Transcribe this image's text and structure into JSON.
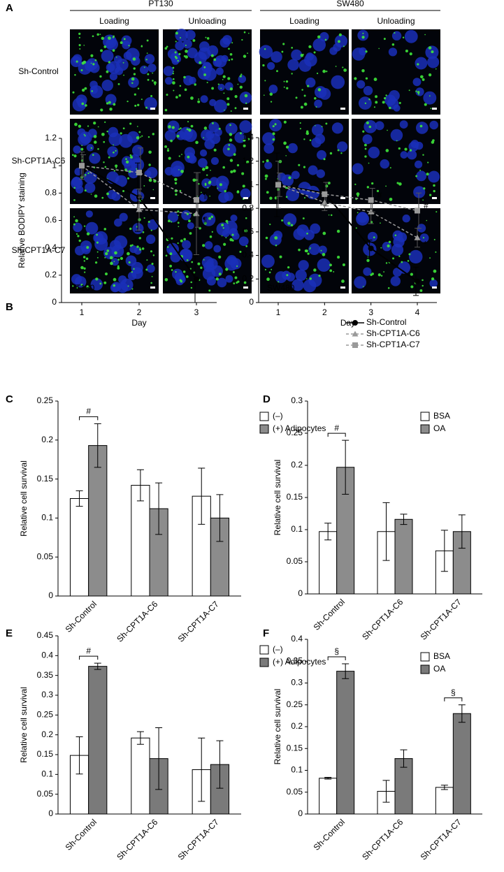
{
  "panel_a": {
    "label": "A",
    "groups": [
      {
        "title": "PT130",
        "columns": [
          "Loading",
          "Unloading"
        ]
      },
      {
        "title": "SW480",
        "columns": [
          "Loading",
          "Unloading"
        ]
      }
    ],
    "rows": [
      "Sh-Control",
      "Sh-CPT1A-C6",
      "Sh-CPT1A-C7"
    ]
  },
  "chart_data": [
    {
      "type": "line",
      "label": "B",
      "annotation": "PT130",
      "xlabel": "Day",
      "ylabel": "Relative BODIPY staining",
      "categories": [
        "1",
        "2",
        "3"
      ],
      "series": [
        {
          "color": "#000000",
          "marker": "circle",
          "linestyle": "solid",
          "values": [
            1,
            0.77,
            0.17
          ],
          "errors": [
            0.08,
            0.25,
            0.17
          ]
        },
        {
          "color": "#9a9a9a",
          "marker": "triangle",
          "linestyle": "dashed",
          "values": [
            1,
            0.68,
            0.65
          ],
          "errors": [
            0.1,
            0.15,
            0.3
          ]
        },
        {
          "color": "#9a9a9a",
          "marker": "square",
          "linestyle": "dashed",
          "values": [
            1,
            0.95,
            0.75
          ],
          "errors": [
            0.08,
            0.18,
            0.2
          ]
        }
      ],
      "ylim": [
        0,
        1.2
      ],
      "yticks": [
        0,
        0.2,
        0.4,
        0.6,
        0.8,
        1,
        1.2
      ],
      "point_notes": [
        {
          "text": "¶",
          "series": 2,
          "index": 2
        },
        {
          "text": "¶",
          "series": 1,
          "index": 2
        }
      ]
    },
    {
      "type": "line",
      "annotation": "SW480",
      "xlabel": "Day",
      "categories": [
        "1",
        "2",
        "3",
        "4"
      ],
      "series": [
        {
          "name": "Sh-Control",
          "color": "#000000",
          "marker": "circle",
          "linestyle": "solid",
          "values": [
            1,
            0.93,
            0.46,
            0.18
          ],
          "errors": [
            0.27,
            0.1,
            0.07,
            0.12
          ]
        },
        {
          "name": "Sh-CPT1A-C6",
          "color": "#9a9a9a",
          "marker": "triangle",
          "linestyle": "dashed",
          "values": [
            1,
            0.85,
            0.77,
            0.55
          ],
          "errors": [
            0.2,
            0.07,
            0.1,
            0.08
          ]
        },
        {
          "name": "Sh-CPT1A-C7",
          "color": "#9a9a9a",
          "marker": "square",
          "linestyle": "dashed",
          "values": [
            1,
            0.92,
            0.87,
            0.78
          ],
          "errors": [
            0.1,
            0.1,
            0.1,
            0.15
          ]
        }
      ],
      "ylim": [
        0,
        1.4
      ],
      "yticks": [
        0,
        0.2,
        0.4,
        0.6,
        0.8,
        1,
        1.2,
        1.4
      ],
      "point_notes": [
        {
          "text": "#",
          "series": 2,
          "index": 2
        },
        {
          "text": "#",
          "series": 1,
          "index": 2
        },
        {
          "text": "#",
          "series": 2,
          "index": 3
        },
        {
          "text": "*",
          "series": 1,
          "index": 3
        }
      ],
      "legend": "upper right"
    },
    {
      "type": "bar",
      "label": "C",
      "ylabel": "Relative cell survival",
      "categories": [
        "Sh-Control",
        "Sh-CPT1A-C6",
        "Sh-CPT1A-C7"
      ],
      "series": [
        {
          "name": "(–)",
          "color": "#ffffff",
          "values": [
            0.125,
            0.142,
            0.128
          ],
          "errors": [
            0.01,
            0.02,
            0.036
          ]
        },
        {
          "name": "(+) Adipocytes",
          "color": "#8c8c8c",
          "values": [
            0.193,
            0.112,
            0.1
          ],
          "errors": [
            0.028,
            0.033,
            0.03
          ]
        }
      ],
      "ylim": [
        0,
        0.25
      ],
      "yticks": [
        0,
        0.05,
        0.1,
        0.15,
        0.2,
        0.25
      ],
      "brackets": [
        {
          "text": "#",
          "category": 0
        }
      ],
      "legend": "upper right"
    },
    {
      "type": "bar",
      "label": "D",
      "ylabel": "Relative cell survival",
      "categories": [
        "Sh-Control",
        "Sh-CPT1A-C6",
        "Sh-CPT1A-C7"
      ],
      "series": [
        {
          "name": "BSA",
          "color": "#ffffff",
          "values": [
            0.097,
            0.097,
            0.067
          ],
          "errors": [
            0.013,
            0.045,
            0.032
          ]
        },
        {
          "name": "OA",
          "color": "#8c8c8c",
          "values": [
            0.197,
            0.116,
            0.097
          ],
          "errors": [
            0.042,
            0.008,
            0.026
          ]
        }
      ],
      "ylim": [
        0,
        0.3
      ],
      "yticks": [
        0,
        0.05,
        0.1,
        0.15,
        0.2,
        0.25,
        0.3
      ],
      "brackets": [
        {
          "text": "#",
          "category": 0
        }
      ],
      "legend": "upper right"
    },
    {
      "type": "bar",
      "label": "E",
      "ylabel": "Relative cell survival",
      "categories": [
        "Sh-Control",
        "Sh-CPT1A-C6",
        "Sh-CPT1A-C7"
      ],
      "series": [
        {
          "name": "(–)",
          "color": "#ffffff",
          "values": [
            0.148,
            0.192,
            0.112
          ],
          "errors": [
            0.047,
            0.016,
            0.08
          ]
        },
        {
          "name": "(+) Adipocytes",
          "color": "#7a7a7a",
          "values": [
            0.373,
            0.14,
            0.125
          ],
          "errors": [
            0.008,
            0.078,
            0.06
          ]
        }
      ],
      "ylim": [
        0,
        0.45
      ],
      "yticks": [
        0,
        0.05,
        0.1,
        0.15,
        0.2,
        0.25,
        0.3,
        0.35,
        0.4,
        0.45
      ],
      "brackets": [
        {
          "text": "#",
          "category": 0
        }
      ],
      "legend": "upper right"
    },
    {
      "type": "bar",
      "label": "F",
      "ylabel": "Relative cell survival",
      "categories": [
        "Sh-Control",
        "Sh-CPT1A-C6",
        "Sh-CPT1A-C7"
      ],
      "series": [
        {
          "name": "BSA",
          "color": "#ffffff",
          "values": [
            0.082,
            0.052,
            0.061
          ],
          "errors": [
            0.002,
            0.025,
            0.005
          ]
        },
        {
          "name": "OA",
          "color": "#7a7a7a",
          "values": [
            0.327,
            0.127,
            0.23
          ],
          "errors": [
            0.017,
            0.02,
            0.02
          ]
        }
      ],
      "ylim": [
        0,
        0.4
      ],
      "yticks": [
        0,
        0.05,
        0.1,
        0.15,
        0.2,
        0.25,
        0.3,
        0.35,
        0.4
      ],
      "brackets": [
        {
          "text": "§",
          "category": 0
        },
        {
          "text": "§",
          "category": 2
        }
      ],
      "legend": "upper right"
    }
  ]
}
